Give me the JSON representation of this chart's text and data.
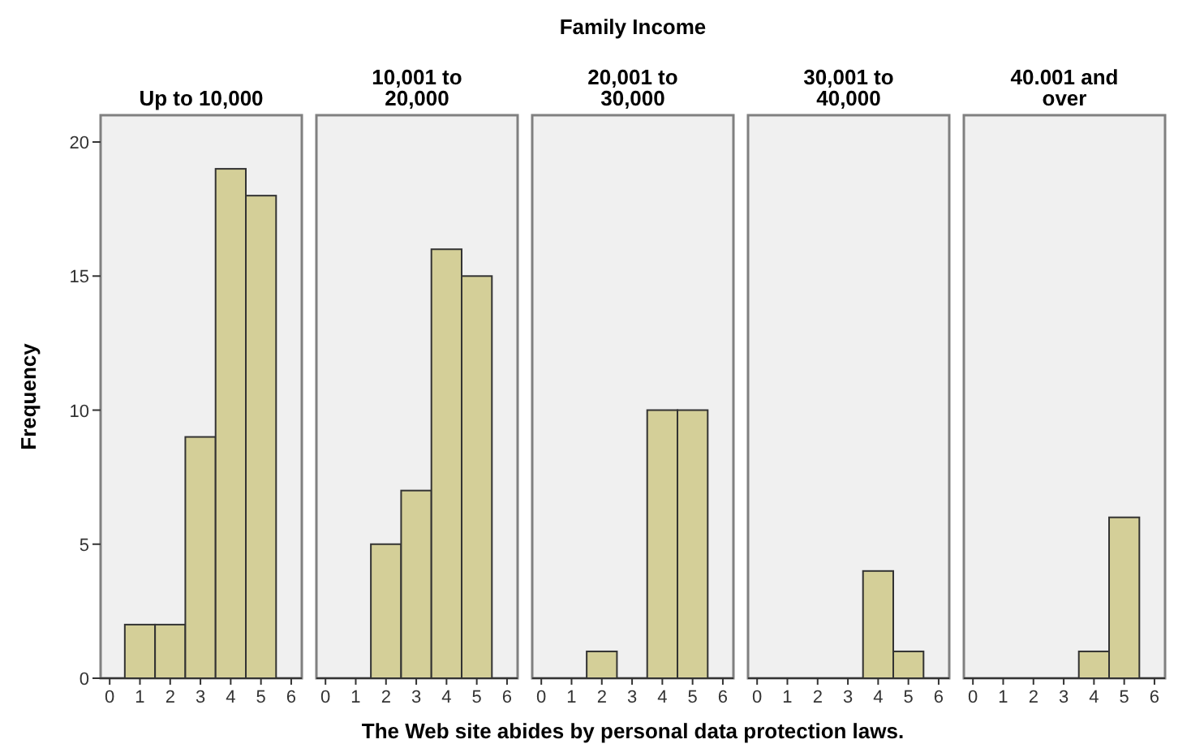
{
  "chart_data": [
    {
      "type": "histogram",
      "title": "Up to 10,000",
      "ylabel": "Frequency",
      "bins": [
        0.5,
        1.5,
        2.5,
        3.5,
        4.5,
        5.5
      ],
      "values": [
        2,
        2,
        9,
        19,
        18
      ],
      "color": "#d4cf98",
      "xlim": [
        -0.3,
        6.35
      ],
      "xticks": [
        0,
        1,
        2,
        3,
        4,
        5,
        6
      ],
      "ylim": [
        0,
        21
      ],
      "yticks": [
        0,
        5,
        10,
        15,
        20
      ]
    },
    {
      "type": "histogram",
      "title": "10,001 to 20,000",
      "bins": [
        0.5,
        1.5,
        2.5,
        3.5,
        4.5,
        5.5
      ],
      "values": [
        0,
        5,
        7,
        16,
        15
      ],
      "color": "#d4cf98",
      "xlim": [
        -0.3,
        6.35
      ],
      "xticks": [
        0,
        1,
        2,
        3,
        4,
        5,
        6
      ],
      "ylim": [
        0,
        21
      ],
      "tick_labels": "x"
    },
    {
      "type": "histogram",
      "title": "20,001 to 30,000",
      "xlabel": "The Web site abides by personal data protection laws.",
      "annotations": [
        "Family Income"
      ],
      "bins": [
        0.5,
        1.5,
        2.5,
        3.5,
        4.5,
        5.5
      ],
      "values": [
        0,
        1,
        0,
        10,
        10
      ],
      "color": "#d4cf98",
      "xlim": [
        -0.3,
        6.35
      ],
      "xticks": [
        0,
        1,
        2,
        3,
        4,
        5,
        6
      ],
      "ylim": [
        0,
        21
      ],
      "tick_labels": "x"
    },
    {
      "type": "histogram",
      "title": "30,001 to 40,000",
      "bins": [
        0.5,
        1.5,
        2.5,
        3.5,
        4.5,
        5.5
      ],
      "values": [
        0,
        0,
        0,
        4,
        1
      ],
      "color": "#d4cf98",
      "xlim": [
        -0.3,
        6.35
      ],
      "xticks": [
        0,
        1,
        2,
        3,
        4,
        5,
        6
      ],
      "ylim": [
        0,
        21
      ],
      "tick_labels": "x"
    },
    {
      "type": "histogram",
      "title": "40.001 and over",
      "bins": [
        0.5,
        1.5,
        2.5,
        3.5,
        4.5,
        5.5
      ],
      "values": [
        0,
        0,
        0,
        1,
        6
      ],
      "color": "#d4cf98",
      "xlim": [
        -0.3,
        6.35
      ],
      "xticks": [
        0,
        1,
        2,
        3,
        4,
        5,
        6
      ],
      "ylim": [
        0,
        21
      ],
      "tick_labels": "x"
    }
  ]
}
